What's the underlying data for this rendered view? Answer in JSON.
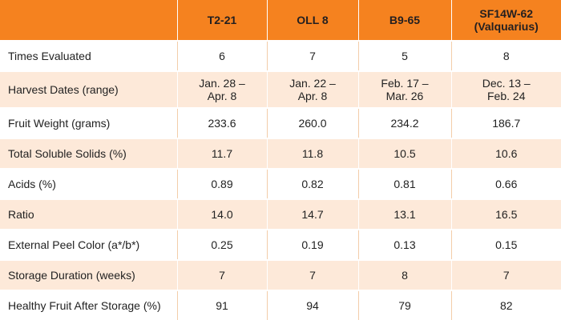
{
  "table": {
    "headers": [
      {
        "line1": "",
        "line2": ""
      },
      {
        "line1": "T2-21",
        "line2": ""
      },
      {
        "line1": "OLL 8",
        "line2": ""
      },
      {
        "line1": "B9-65",
        "line2": ""
      },
      {
        "line1": "SF14W-62",
        "line2": "(Valquarius)"
      }
    ],
    "rows": [
      {
        "label": "Times Evaluated",
        "values": [
          {
            "l1": "6",
            "l2": ""
          },
          {
            "l1": "7",
            "l2": ""
          },
          {
            "l1": "5",
            "l2": ""
          },
          {
            "l1": "8",
            "l2": ""
          }
        ]
      },
      {
        "label": "Harvest Dates (range)",
        "values": [
          {
            "l1": "Jan. 28 –",
            "l2": "Apr. 8"
          },
          {
            "l1": "Jan. 22 –",
            "l2": "Apr. 8"
          },
          {
            "l1": "Feb. 17 –",
            "l2": "Mar. 26"
          },
          {
            "l1": "Dec. 13 –",
            "l2": "Feb. 24"
          }
        ]
      },
      {
        "label": "Fruit Weight (grams)",
        "values": [
          {
            "l1": "233.6",
            "l2": ""
          },
          {
            "l1": "260.0",
            "l2": ""
          },
          {
            "l1": "234.2",
            "l2": ""
          },
          {
            "l1": "186.7",
            "l2": ""
          }
        ]
      },
      {
        "label": "Total Soluble Solids (%)",
        "values": [
          {
            "l1": "11.7",
            "l2": ""
          },
          {
            "l1": "11.8",
            "l2": ""
          },
          {
            "l1": "10.5",
            "l2": ""
          },
          {
            "l1": "10.6",
            "l2": ""
          }
        ]
      },
      {
        "label": "Acids (%)",
        "values": [
          {
            "l1": "0.89",
            "l2": ""
          },
          {
            "l1": "0.82",
            "l2": ""
          },
          {
            "l1": "0.81",
            "l2": ""
          },
          {
            "l1": "0.66",
            "l2": ""
          }
        ]
      },
      {
        "label": "Ratio",
        "values": [
          {
            "l1": "14.0",
            "l2": ""
          },
          {
            "l1": "14.7",
            "l2": ""
          },
          {
            "l1": "13.1",
            "l2": ""
          },
          {
            "l1": "16.5",
            "l2": ""
          }
        ]
      },
      {
        "label": "External Peel Color (a*/b*)",
        "values": [
          {
            "l1": "0.25",
            "l2": ""
          },
          {
            "l1": "0.19",
            "l2": ""
          },
          {
            "l1": "0.13",
            "l2": ""
          },
          {
            "l1": "0.15",
            "l2": ""
          }
        ]
      },
      {
        "label": "Storage Duration (weeks)",
        "values": [
          {
            "l1": "7",
            "l2": ""
          },
          {
            "l1": "7",
            "l2": ""
          },
          {
            "l1": "8",
            "l2": ""
          },
          {
            "l1": "7",
            "l2": ""
          }
        ]
      },
      {
        "label": "Healthy Fruit After Storage (%)",
        "values": [
          {
            "l1": "91",
            "l2": ""
          },
          {
            "l1": "94",
            "l2": ""
          },
          {
            "l1": "79",
            "l2": ""
          },
          {
            "l1": "82",
            "l2": ""
          }
        ]
      }
    ]
  },
  "colors": {
    "header_bg": "#f5821f",
    "stripe_bg": "#fde9d9",
    "text": "#222222"
  }
}
